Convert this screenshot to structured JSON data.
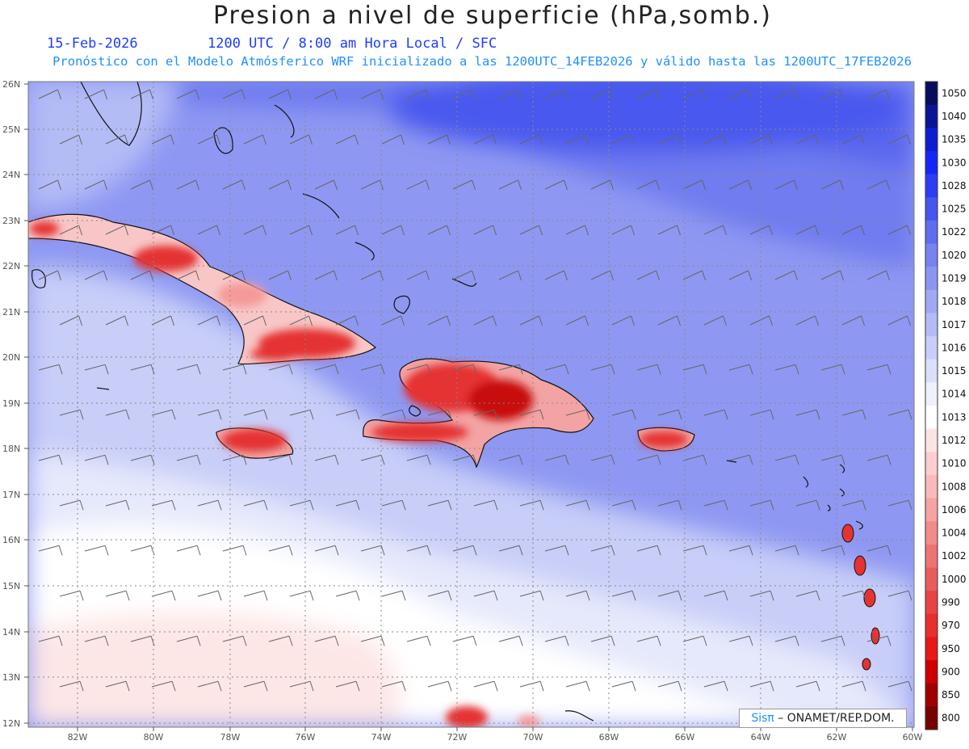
{
  "header": {
    "title": "Presion a nivel de superficie (hPa,somb.)",
    "date": "15-Feb-2026",
    "valid_time": "1200 UTC / 8:00 am Hora Local / SFC",
    "subtitle": "Pronóstico con el Modelo Atmósferico WRF inicializado a las 1200UTC_14FEB2026 y válido hasta las  1200UTC_17FEB2026"
  },
  "map": {
    "lat_labels": [
      "26N",
      "25N",
      "24N",
      "23N",
      "22N",
      "21N",
      "20N",
      "19N",
      "18N",
      "17N",
      "16N",
      "15N",
      "14N",
      "13N",
      "12N"
    ],
    "lon_labels": [
      "82W",
      "80W",
      "78W",
      "76W",
      "74W",
      "72W",
      "70W",
      "68W",
      "66W",
      "64W",
      "62W",
      "60W"
    ],
    "lon_range": [
      -83.3,
      -60.0
    ],
    "lat_range": [
      11.9,
      26.1
    ]
  },
  "colorbar": {
    "levels": [
      "1050",
      "1040",
      "1035",
      "1030",
      "1028",
      "1025",
      "1022",
      "1020",
      "1019",
      "1018",
      "1017",
      "1016",
      "1015",
      "1014",
      "1013",
      "1012",
      "1010",
      "1008",
      "1006",
      "1004",
      "1002",
      "1000",
      "990",
      "970",
      "950",
      "900",
      "850",
      "800"
    ],
    "colors": [
      "#060d5c",
      "#0a1496",
      "#0b1ed2",
      "#1428f5",
      "#2d3cf5",
      "#4655f0",
      "#5f6eef",
      "#7882f0",
      "#8c96f2",
      "#a0aaf4",
      "#b4bcf6",
      "#c8cef8",
      "#dcdffa",
      "#eef0fc",
      "#ffffff",
      "#fde4e4",
      "#fbcfcf",
      "#f8baba",
      "#f5a3a3",
      "#f28b8b",
      "#ee7474",
      "#ea5c5c",
      "#e84444",
      "#e82e2e",
      "#e61818",
      "#cc0000",
      "#a00000",
      "#780000"
    ]
  },
  "credit": {
    "brand": "Sisπ",
    "text": " – ONAMET/REP.DOM."
  }
}
